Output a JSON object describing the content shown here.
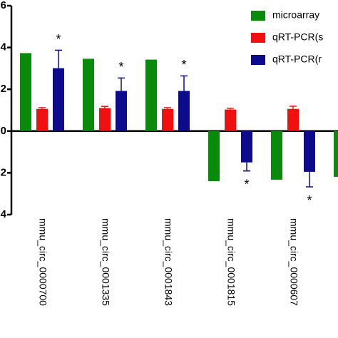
{
  "chart_data": {
    "type": "bar",
    "categories": [
      "mmu_circ_0000700",
      "mmu_circ_0001335",
      "mmu_circ_0001843",
      "mmu_circ_0001815",
      "mmu_circ_0000607",
      null
    ],
    "series": [
      {
        "name": "microarray",
        "color": "#0a8a0a",
        "values": [
          3.73,
          3.46,
          3.42,
          -2.4,
          -2.33,
          -2.19
        ]
      },
      {
        "name": "qRT-PCR(s",
        "color": "#f01010",
        "values": [
          1.06,
          1.1,
          1.06,
          1.03,
          1.06,
          null
        ],
        "errors": [
          0.06,
          0.08,
          0.06,
          0.06,
          0.13,
          null
        ]
      },
      {
        "name": "qRT-PCR(r",
        "color": "#0b0b8c",
        "values": [
          3.01,
          1.92,
          1.92,
          -1.5,
          -1.95,
          null
        ],
        "errors": [
          0.86,
          0.62,
          0.72,
          0.41,
          0.72,
          null
        ]
      }
    ],
    "annotations": [
      "*",
      "*",
      "*",
      "*",
      "*",
      null
    ],
    "ylim": [
      -4,
      6
    ],
    "yticks": [
      -4,
      -2,
      0,
      2,
      4,
      6
    ]
  }
}
